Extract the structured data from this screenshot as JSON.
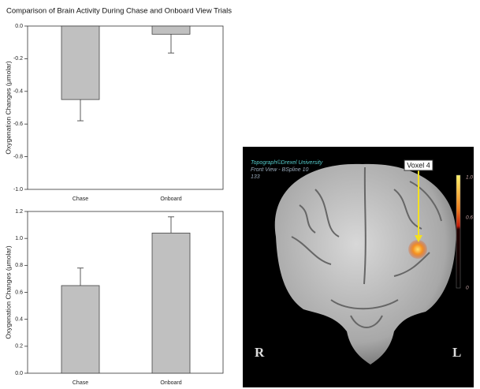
{
  "title": "Comparison of Brain Activity During Chase and Onboard View Trials",
  "chart_data": [
    {
      "type": "bar",
      "y_label": "Oxygenation Changes (μmolar)",
      "categories": [
        "Chase",
        "Onboard"
      ],
      "values": [
        -0.45,
        -0.05
      ],
      "errors": [
        0.13,
        0.115
      ],
      "color": "#c0c0c0",
      "ylim": [
        -1.0,
        0
      ],
      "yticks": [
        {
          "value": -1.0,
          "label": "-1.0"
        },
        -0.8,
        -0.6,
        -0.4,
        -0.2,
        {
          "value": 0,
          "label": "0.0"
        }
      ]
    },
    {
      "type": "bar",
      "y_label": "Oxygenation Changes (μmolar)",
      "categories": [
        "Chase",
        "Onboard"
      ],
      "values": [
        0.65,
        1.04
      ],
      "errors": [
        0.13,
        0.12
      ],
      "color": "#c0c0c0",
      "ylim": [
        0,
        1.2
      ],
      "yticks": [
        {
          "value": 0,
          "label": "0.0"
        },
        0.2,
        0.4,
        0.6,
        0.8,
        {
          "value": 1.0,
          "label": "1.0"
        },
        1.2
      ]
    }
  ],
  "brain_image": {
    "credit": "Topograph©Drexel University",
    "view": "Front View - BSpline 10",
    "frame": "133",
    "voxel_label": "Voxel 4",
    "colorbar_labels": [
      "1.0",
      "0.6",
      "0"
    ],
    "left_label": "R",
    "right_label": "L"
  }
}
